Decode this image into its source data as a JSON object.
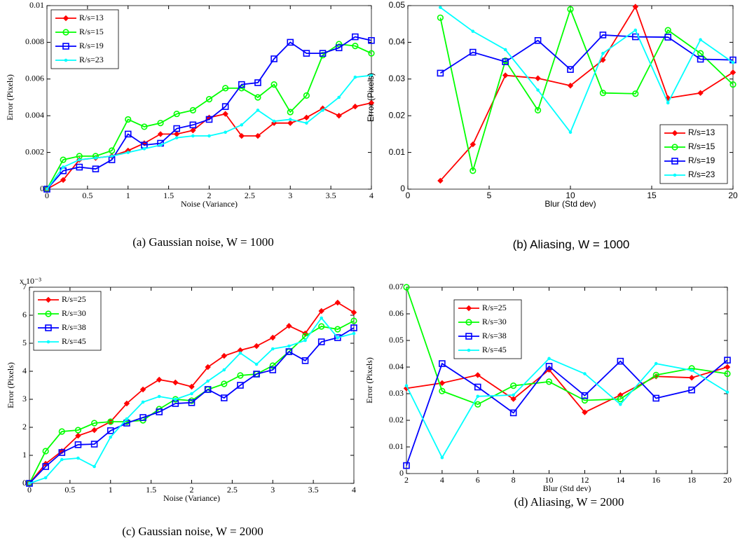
{
  "chart_data": [
    {
      "type": "line",
      "caption": "(a) Gaussian noise, W = 1000",
      "xlabel": "Noise (Variance)",
      "ylabel": "Error (Pixels)",
      "x": [
        0,
        0.2,
        0.4,
        0.6,
        0.8,
        1,
        1.2,
        1.4,
        1.6,
        1.8,
        2,
        2.2,
        2.4,
        2.6,
        2.8,
        3,
        3.2,
        3.4,
        3.6,
        3.8,
        4
      ],
      "xlim": [
        0,
        4
      ],
      "xticks": [
        0,
        0.5,
        1,
        1.5,
        2,
        2.5,
        3,
        3.5,
        4
      ],
      "ylim": [
        0,
        0.01
      ],
      "yticks": [
        0,
        0.002,
        0.004,
        0.006,
        0.008,
        0.01
      ],
      "legend": "upper left",
      "series": [
        {
          "name": "R/s=13",
          "color": "#ff0000",
          "marker": "star",
          "values": [
            0,
            0.0005,
            0.0016,
            0.0017,
            0.0018,
            0.0021,
            0.0025,
            0.003,
            0.003,
            0.0032,
            0.0039,
            0.0041,
            0.0029,
            0.0029,
            0.0036,
            0.0036,
            0.0039,
            0.0044,
            0.004,
            0.0045,
            0.0047
          ]
        },
        {
          "name": "R/s=15",
          "color": "#00ff00",
          "marker": "circle",
          "values": [
            0,
            0.0016,
            0.0018,
            0.0018,
            0.0021,
            0.0038,
            0.0034,
            0.0036,
            0.0041,
            0.0043,
            0.0049,
            0.0055,
            0.0055,
            0.005,
            0.0057,
            0.0042,
            0.0051,
            0.0073,
            0.0079,
            0.0078,
            0.0074
          ]
        },
        {
          "name": "R/s=19",
          "color": "#0000ff",
          "marker": "square",
          "values": [
            0,
            0.001,
            0.0012,
            0.0011,
            0.0016,
            0.003,
            0.0024,
            0.0025,
            0.0033,
            0.0035,
            0.0038,
            0.0045,
            0.0057,
            0.0058,
            0.0071,
            0.008,
            0.0074,
            0.0074,
            0.0077,
            0.0083,
            0.0081
          ]
        },
        {
          "name": "R/s=23",
          "color": "#00ffff",
          "marker": "dot",
          "values": [
            0,
            0.0012,
            0.0016,
            0.0017,
            0.0018,
            0.002,
            0.0022,
            0.0024,
            0.0028,
            0.0029,
            0.0029,
            0.0031,
            0.0035,
            0.0043,
            0.0037,
            0.0038,
            0.0036,
            0.0043,
            0.005,
            0.0061,
            0.0062
          ]
        }
      ]
    },
    {
      "type": "line",
      "caption": "(b) Aliasing, W = 1000",
      "xlabel": "Blur (Std dev)",
      "ylabel": "Error (Pixels)",
      "x": [
        2,
        4,
        6,
        8,
        10,
        12,
        14,
        16,
        18,
        20
      ],
      "xlim": [
        0,
        20
      ],
      "xticks": [
        0,
        5,
        10,
        15,
        20
      ],
      "ylim": [
        0,
        0.05
      ],
      "yticks": [
        0,
        0.01,
        0.02,
        0.03,
        0.04,
        0.05
      ],
      "legend": "lower right",
      "series": [
        {
          "name": "R/s=13",
          "color": "#ff0000",
          "marker": "star",
          "values": [
            0.0023,
            0.0122,
            0.031,
            0.0302,
            0.0282,
            0.0352,
            0.0497,
            0.0248,
            0.0262,
            0.0318
          ]
        },
        {
          "name": "R/s=15",
          "color": "#00ff00",
          "marker": "circle",
          "values": [
            0.0467,
            0.005,
            0.035,
            0.0215,
            0.049,
            0.0262,
            0.026,
            0.0433,
            0.037,
            0.0285
          ]
        },
        {
          "name": "R/s=19",
          "color": "#0000ff",
          "marker": "square",
          "values": [
            0.0316,
            0.0373,
            0.0347,
            0.0405,
            0.0326,
            0.042,
            0.0415,
            0.0414,
            0.0354,
            0.0352
          ]
        },
        {
          "name": "R/s=23",
          "color": "#00ffff",
          "marker": "dot",
          "values": [
            0.0495,
            0.043,
            0.038,
            0.027,
            0.0155,
            0.037,
            0.0433,
            0.0235,
            0.0407,
            0.0345
          ]
        }
      ]
    },
    {
      "type": "line",
      "caption": "(c) Gaussian noise, W = 2000",
      "xlabel": "Noise (Variance)",
      "ylabel": "Error (Pixels)",
      "y_offset_text": "x 10⁻³",
      "x": [
        0,
        0.2,
        0.4,
        0.6,
        0.8,
        1,
        1.2,
        1.4,
        1.6,
        1.8,
        2,
        2.2,
        2.4,
        2.6,
        2.8,
        3,
        3.2,
        3.4,
        3.6,
        3.8,
        4
      ],
      "xlim": [
        0,
        4
      ],
      "xticks": [
        0,
        0.5,
        1,
        1.5,
        2,
        2.5,
        3,
        3.5,
        4
      ],
      "ylim": [
        0,
        7
      ],
      "yticks": [
        0,
        1,
        2,
        3,
        4,
        5,
        6,
        7
      ],
      "legend": "upper left",
      "series": [
        {
          "name": "R/s=25",
          "color": "#ff0000",
          "marker": "star",
          "values": [
            0,
            0.7,
            1.15,
            1.7,
            1.9,
            2.2,
            2.85,
            3.35,
            3.7,
            3.6,
            3.45,
            4.15,
            4.55,
            4.75,
            4.9,
            5.2,
            5.62,
            5.35,
            6.15,
            6.45,
            6.1
          ]
        },
        {
          "name": "R/s=30",
          "color": "#00ff00",
          "marker": "circle",
          "values": [
            0,
            1.15,
            1.85,
            1.9,
            2.15,
            2.2,
            2.2,
            2.25,
            2.65,
            3,
            2.95,
            3.35,
            3.55,
            3.85,
            3.9,
            4.2,
            4.7,
            5.25,
            5.6,
            5.5,
            5.8
          ]
        },
        {
          "name": "R/s=38",
          "color": "#0000ff",
          "marker": "square",
          "values": [
            0,
            0.6,
            1.1,
            1.38,
            1.4,
            1.88,
            2.15,
            2.35,
            2.55,
            2.85,
            2.88,
            3.35,
            3.05,
            3.5,
            3.9,
            4.05,
            4.7,
            4.38,
            5.05,
            5.2,
            5.55
          ]
        },
        {
          "name": "R/s=45",
          "color": "#00ffff",
          "marker": "dot",
          "values": [
            0,
            0.2,
            0.85,
            0.9,
            0.6,
            1.65,
            2.3,
            2.9,
            3.1,
            3,
            3.2,
            3.65,
            4.05,
            4.65,
            4.25,
            4.8,
            4.9,
            5.1,
            5.9,
            5.2,
            5.35
          ]
        }
      ]
    },
    {
      "type": "line",
      "caption": "(d) Aliasing, W = 2000",
      "xlabel": "Blur (Std dev)",
      "ylabel": "Error (Pixels)",
      "x": [
        2,
        4,
        6,
        8,
        10,
        12,
        14,
        16,
        18,
        20
      ],
      "xlim": [
        2,
        20
      ],
      "xticks": [
        2,
        4,
        6,
        8,
        10,
        12,
        14,
        16,
        18,
        20
      ],
      "ylim": [
        0,
        0.07
      ],
      "yticks": [
        0,
        0.01,
        0.02,
        0.03,
        0.04,
        0.05,
        0.06,
        0.07
      ],
      "legend": "upper left",
      "series": [
        {
          "name": "R/s=25",
          "color": "#ff0000",
          "marker": "star",
          "values": [
            0.032,
            0.034,
            0.037,
            0.028,
            0.039,
            0.023,
            0.0295,
            0.0365,
            0.036,
            0.04
          ]
        },
        {
          "name": "R/s=30",
          "color": "#00ff00",
          "marker": "circle",
          "values": [
            0.07,
            0.031,
            0.026,
            0.033,
            0.0345,
            0.0275,
            0.028,
            0.037,
            0.0395,
            0.0375
          ]
        },
        {
          "name": "R/s=38",
          "color": "#0000ff",
          "marker": "square",
          "values": [
            0.003,
            0.0413,
            0.0325,
            0.0228,
            0.0403,
            0.0293,
            0.0422,
            0.0283,
            0.0314,
            0.0426
          ]
        },
        {
          "name": "R/s=45",
          "color": "#00ffff",
          "marker": "dot",
          "values": [
            0.033,
            0.006,
            0.029,
            0.0295,
            0.0432,
            0.0375,
            0.026,
            0.0413,
            0.0388,
            0.0306
          ]
        }
      ]
    }
  ]
}
